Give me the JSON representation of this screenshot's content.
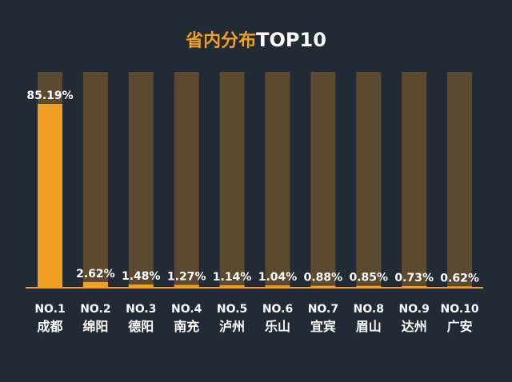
{
  "chart_data": {
    "type": "bar",
    "title": "省内分布TOP10",
    "title_parts": [
      "省内分布",
      "TOP10"
    ],
    "categories": [
      "成都",
      "绵阳",
      "德阳",
      "南充",
      "泸州",
      "乐山",
      "宜宾",
      "眉山",
      "达州",
      "广安"
    ],
    "ranks": [
      "NO.1",
      "NO.2",
      "NO.3",
      "NO.4",
      "NO.5",
      "NO.6",
      "NO.7",
      "NO.8",
      "NO.9",
      "NO.10"
    ],
    "values": [
      85.19,
      2.62,
      1.48,
      1.27,
      1.14,
      1.04,
      0.88,
      0.85,
      0.73,
      0.62
    ],
    "labels": [
      "85.19%",
      "2.62%",
      "1.48%",
      "1.27%",
      "1.14%",
      "1.04%",
      "0.88%",
      "0.85%",
      "0.73%",
      "0.62%"
    ],
    "ylim": [
      0,
      100
    ],
    "unit": "%",
    "xlabel": "",
    "ylabel": "",
    "grid": false,
    "colors": {
      "background": "#222a36",
      "bar": "#f0a020",
      "track": "#5b4a30",
      "axis": "#f0a020",
      "title_accent": "#f0a020",
      "text": "#ffffff"
    }
  }
}
